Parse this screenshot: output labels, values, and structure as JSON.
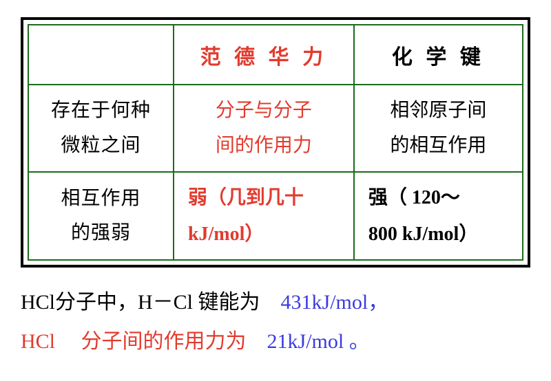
{
  "table": {
    "border_color": "#1a6b1a",
    "outer_border_color": "#000000",
    "header": {
      "col1": "",
      "col2": "范 德 华 力",
      "col3": "化 学 键"
    },
    "row1": {
      "label_line1": "存在于何种",
      "label_line2": "微粒之间",
      "col2_line1": "分子与分子",
      "col2_line2": "间的作用力",
      "col3_line1": "相邻原子间",
      "col3_line2": "的相互作用"
    },
    "row2": {
      "label_line1": "相互作用",
      "label_line2": "的强弱",
      "col2_line1": "弱（几到几十",
      "col2_line2": "kJ/mol）",
      "col3_line1": "强（ 120～",
      "col3_line2": "800 kJ/mol）"
    },
    "colors": {
      "red": "#e23b2e",
      "black": "#000000",
      "blue": "#3a3ae0"
    }
  },
  "below": {
    "part1": "HCl分子中，H－Cl 键能为",
    "val1": "431kJ/mol，",
    "part2a": "HCl",
    "part2b": "分子间的作用力为",
    "val2": "21kJ/mol 。"
  }
}
